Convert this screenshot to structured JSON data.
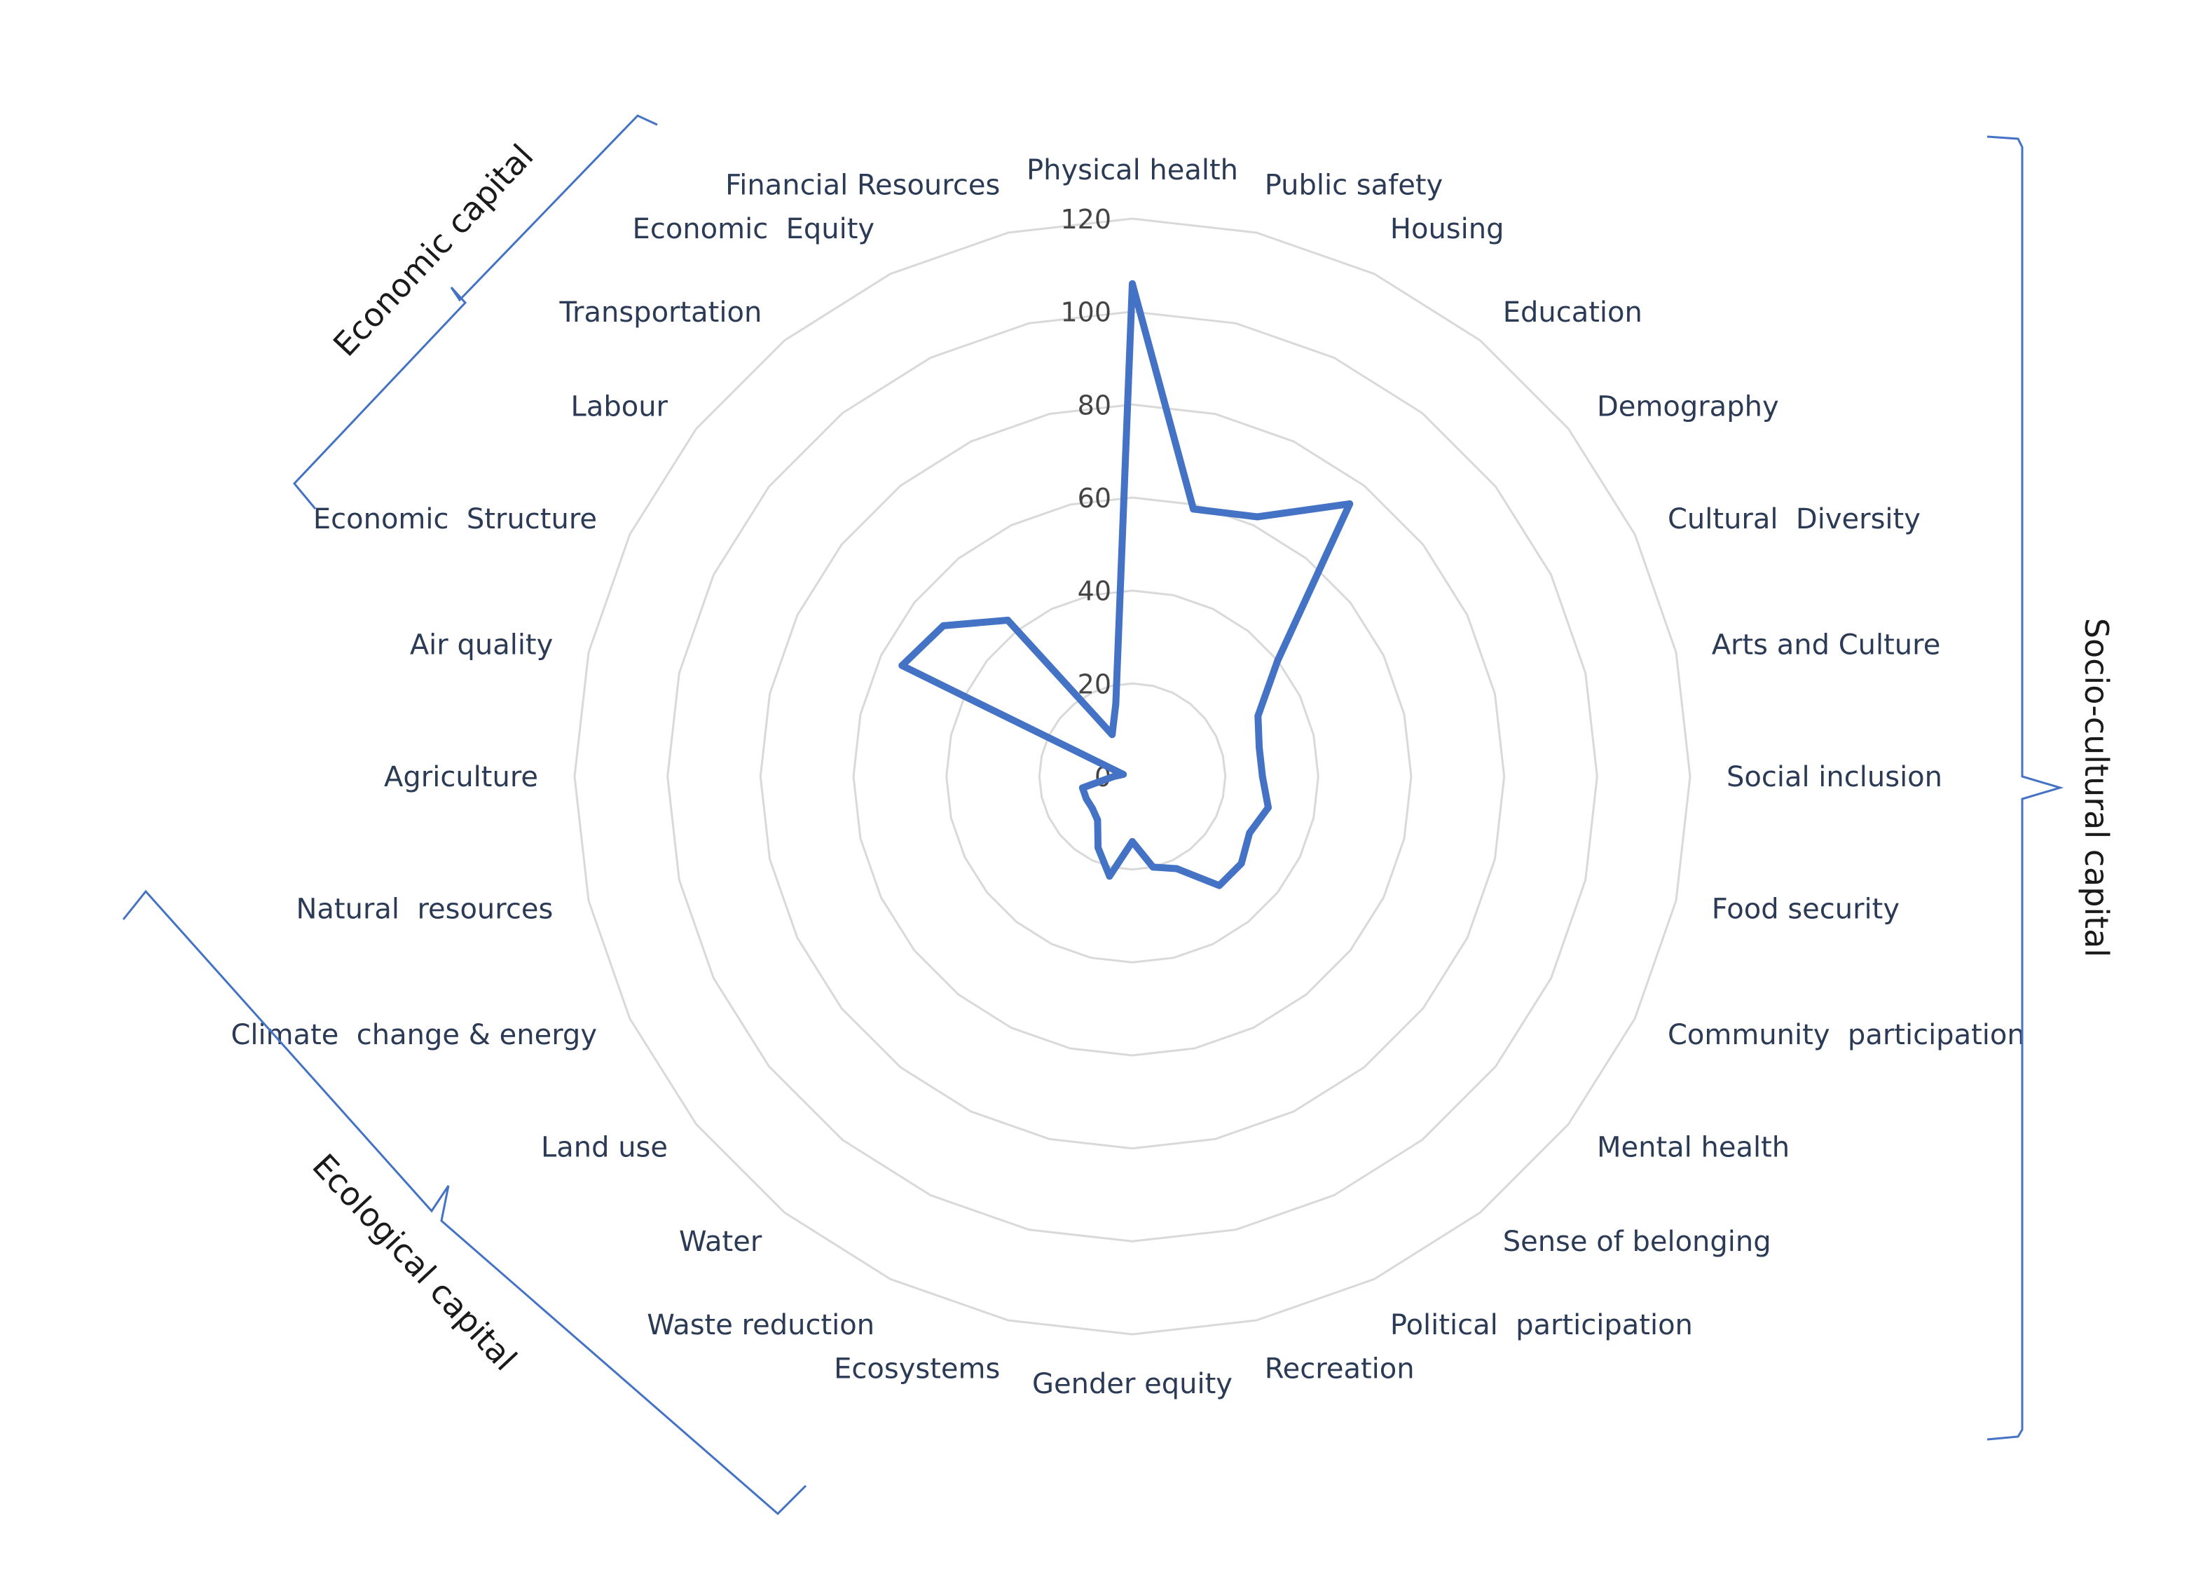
{
  "chart_data": {
    "type": "radar",
    "title": "",
    "rmax": 120,
    "ticks": [
      0,
      20,
      40,
      60,
      80,
      100,
      120
    ],
    "grid": true,
    "legend": "none",
    "categories": [
      "Physical health",
      "Public safety",
      "Housing",
      "Education",
      "Demography",
      "Cultural  Diversity",
      "Arts and Culture",
      "Social inclusion",
      "Food security",
      "Community  participation",
      "Mental health",
      "Sense of belonging",
      "Political  participation",
      "Recreation",
      "Gender equity",
      "Ecosystems",
      "Waste reduction",
      "Water",
      "Land use",
      "Climate  change & energy",
      "Natural  resources",
      "Agriculture",
      "Air quality",
      "Economic  Structure",
      "Labour",
      "Transportation",
      "Economic  Equity",
      "Financial Resources"
    ],
    "series": [
      {
        "values": [
          106,
          59,
          62,
          75,
          40,
          30,
          28,
          28,
          30,
          28,
          30,
          30,
          22,
          20,
          14,
          22,
          17,
          12,
          11,
          11,
          11,
          4,
          2,
          55,
          52,
          43,
          10,
          16
        ]
      }
    ],
    "groups": [
      {
        "label": "Socio-cultural capital"
      },
      {
        "label": "Ecological capital"
      },
      {
        "label": "Economic capital"
      }
    ]
  },
  "colors": {
    "series": "#4472c4",
    "grid": "#d9d9d9",
    "bracket": "#4472c4",
    "label": "#2b3a55"
  }
}
